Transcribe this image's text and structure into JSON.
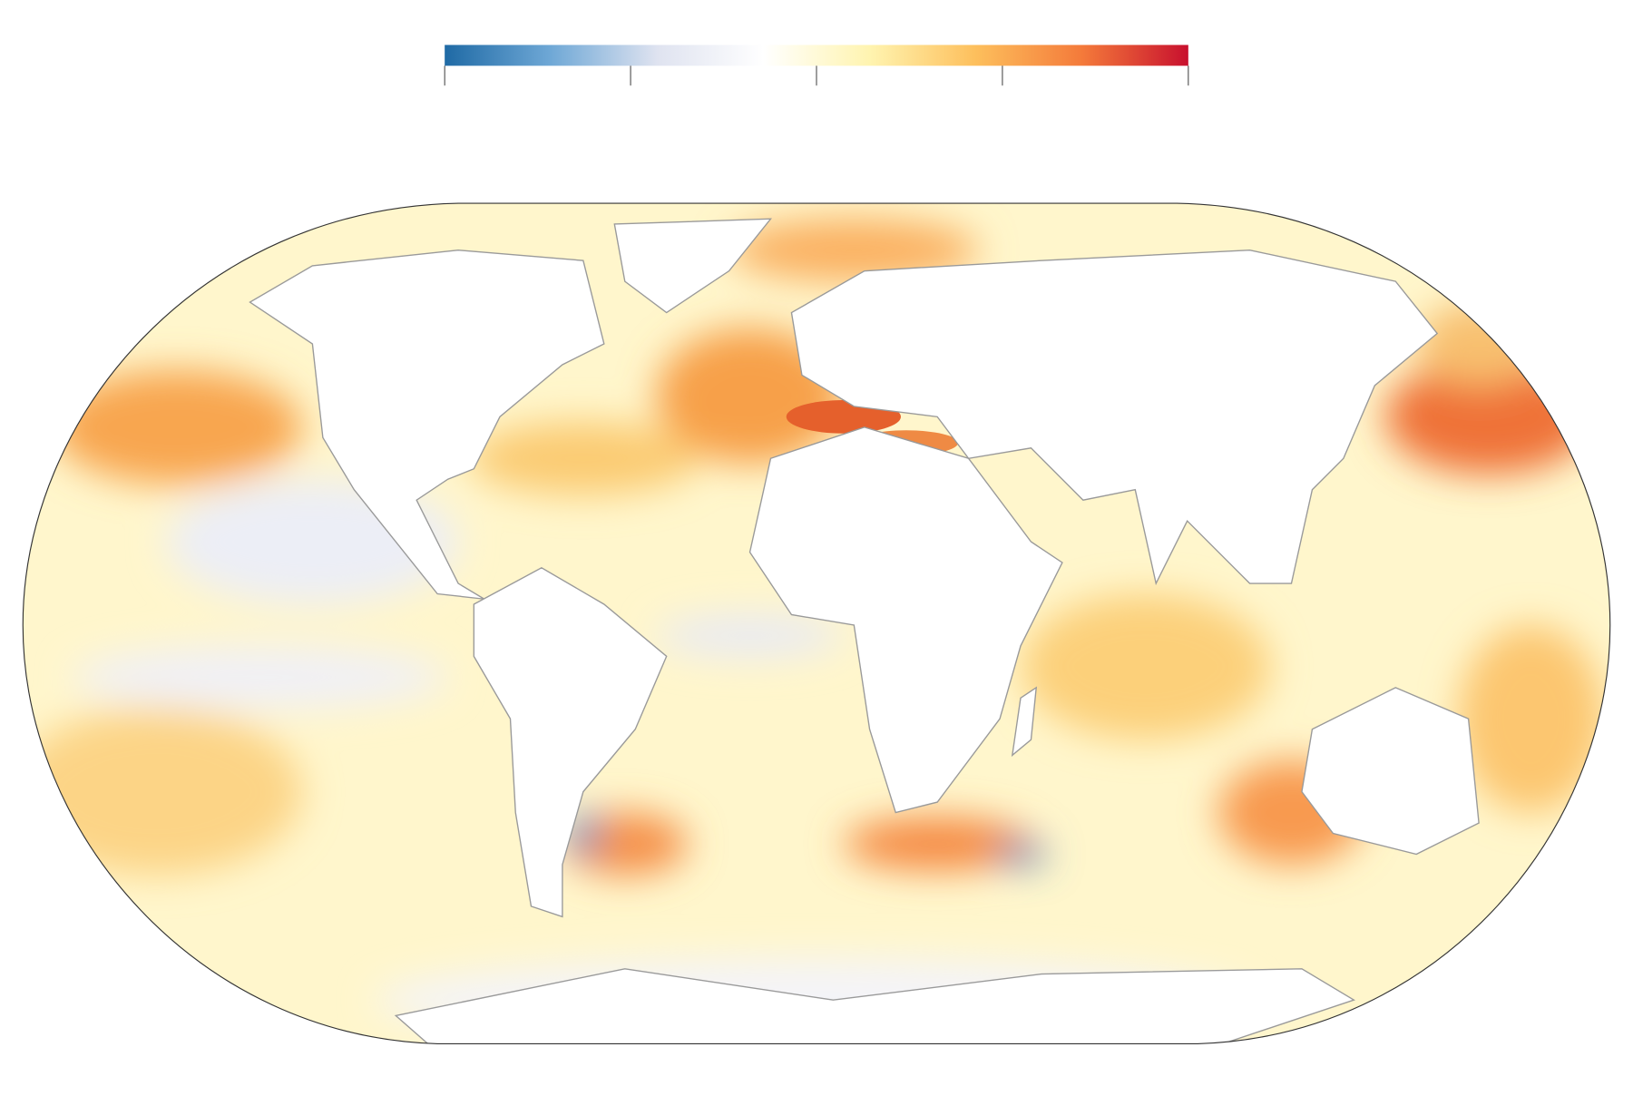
{
  "colorbar": {
    "colors": [
      "#1f6aa5",
      "#6fa8d6",
      "#dfe3f0",
      "#ffffff",
      "#fff4b0",
      "#fdbf5c",
      "#f47a3a",
      "#c8102e"
    ]
  }
}
